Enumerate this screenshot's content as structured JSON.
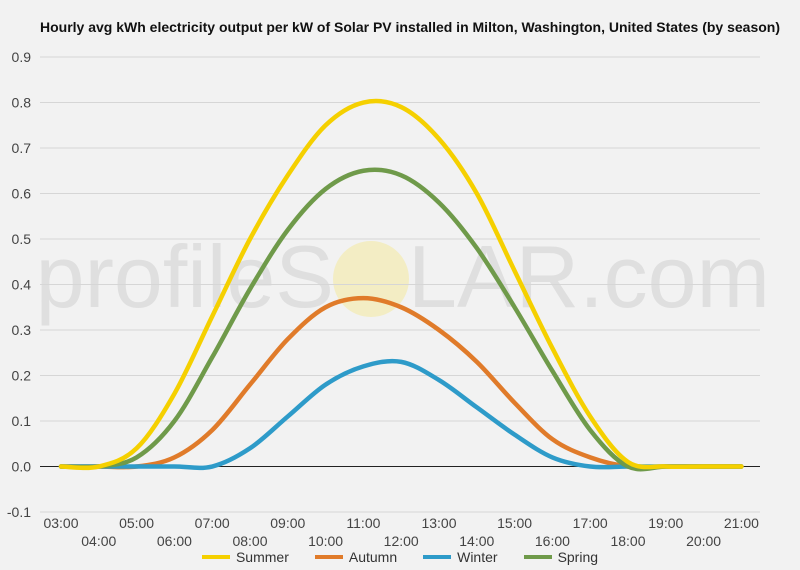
{
  "title": "Hourly avg kWh electricity output per kW of Solar PV installed in Milton, Washington, United States (by season)",
  "watermark": {
    "left": "profileS",
    "right": "LAR.com"
  },
  "chart_data": {
    "type": "line",
    "title": "Hourly avg kWh electricity output per kW of Solar PV installed in Milton, Washington, United States (by season)",
    "xlabel": "",
    "ylabel": "",
    "x": [
      "03:00",
      "04:00",
      "05:00",
      "06:00",
      "07:00",
      "08:00",
      "09:00",
      "10:00",
      "11:00",
      "12:00",
      "13:00",
      "14:00",
      "15:00",
      "16:00",
      "17:00",
      "18:00",
      "19:00",
      "20:00",
      "21:00"
    ],
    "ylim": [
      -0.1,
      0.9
    ],
    "yticks": [
      "-0.1",
      "0.0",
      "0.1",
      "0.2",
      "0.3",
      "0.4",
      "0.5",
      "0.6",
      "0.7",
      "0.8",
      "0.9"
    ],
    "grid": true,
    "legend_position": "bottom",
    "series": [
      {
        "name": "Summer",
        "color": "#f5d000",
        "values": [
          0.0,
          0.0,
          0.04,
          0.16,
          0.33,
          0.5,
          0.64,
          0.75,
          0.8,
          0.79,
          0.72,
          0.6,
          0.43,
          0.26,
          0.11,
          0.01,
          0.0,
          0.0,
          0.0
        ]
      },
      {
        "name": "Autumn",
        "color": "#e07b2a",
        "values": [
          0.0,
          0.0,
          0.0,
          0.02,
          0.08,
          0.18,
          0.28,
          0.35,
          0.37,
          0.35,
          0.3,
          0.23,
          0.14,
          0.06,
          0.02,
          0.0,
          0.0,
          0.0,
          0.0
        ]
      },
      {
        "name": "Winter",
        "color": "#2e9bc9",
        "values": [
          0.0,
          0.0,
          0.0,
          0.0,
          0.0,
          0.04,
          0.11,
          0.18,
          0.22,
          0.23,
          0.19,
          0.13,
          0.07,
          0.02,
          0.0,
          0.0,
          0.0,
          0.0,
          0.0
        ]
      },
      {
        "name": "Spring",
        "color": "#6f9a4a",
        "values": [
          0.0,
          0.0,
          0.02,
          0.1,
          0.24,
          0.39,
          0.52,
          0.61,
          0.65,
          0.64,
          0.58,
          0.48,
          0.35,
          0.21,
          0.08,
          0.0,
          0.0,
          0.0,
          0.0
        ]
      }
    ]
  }
}
